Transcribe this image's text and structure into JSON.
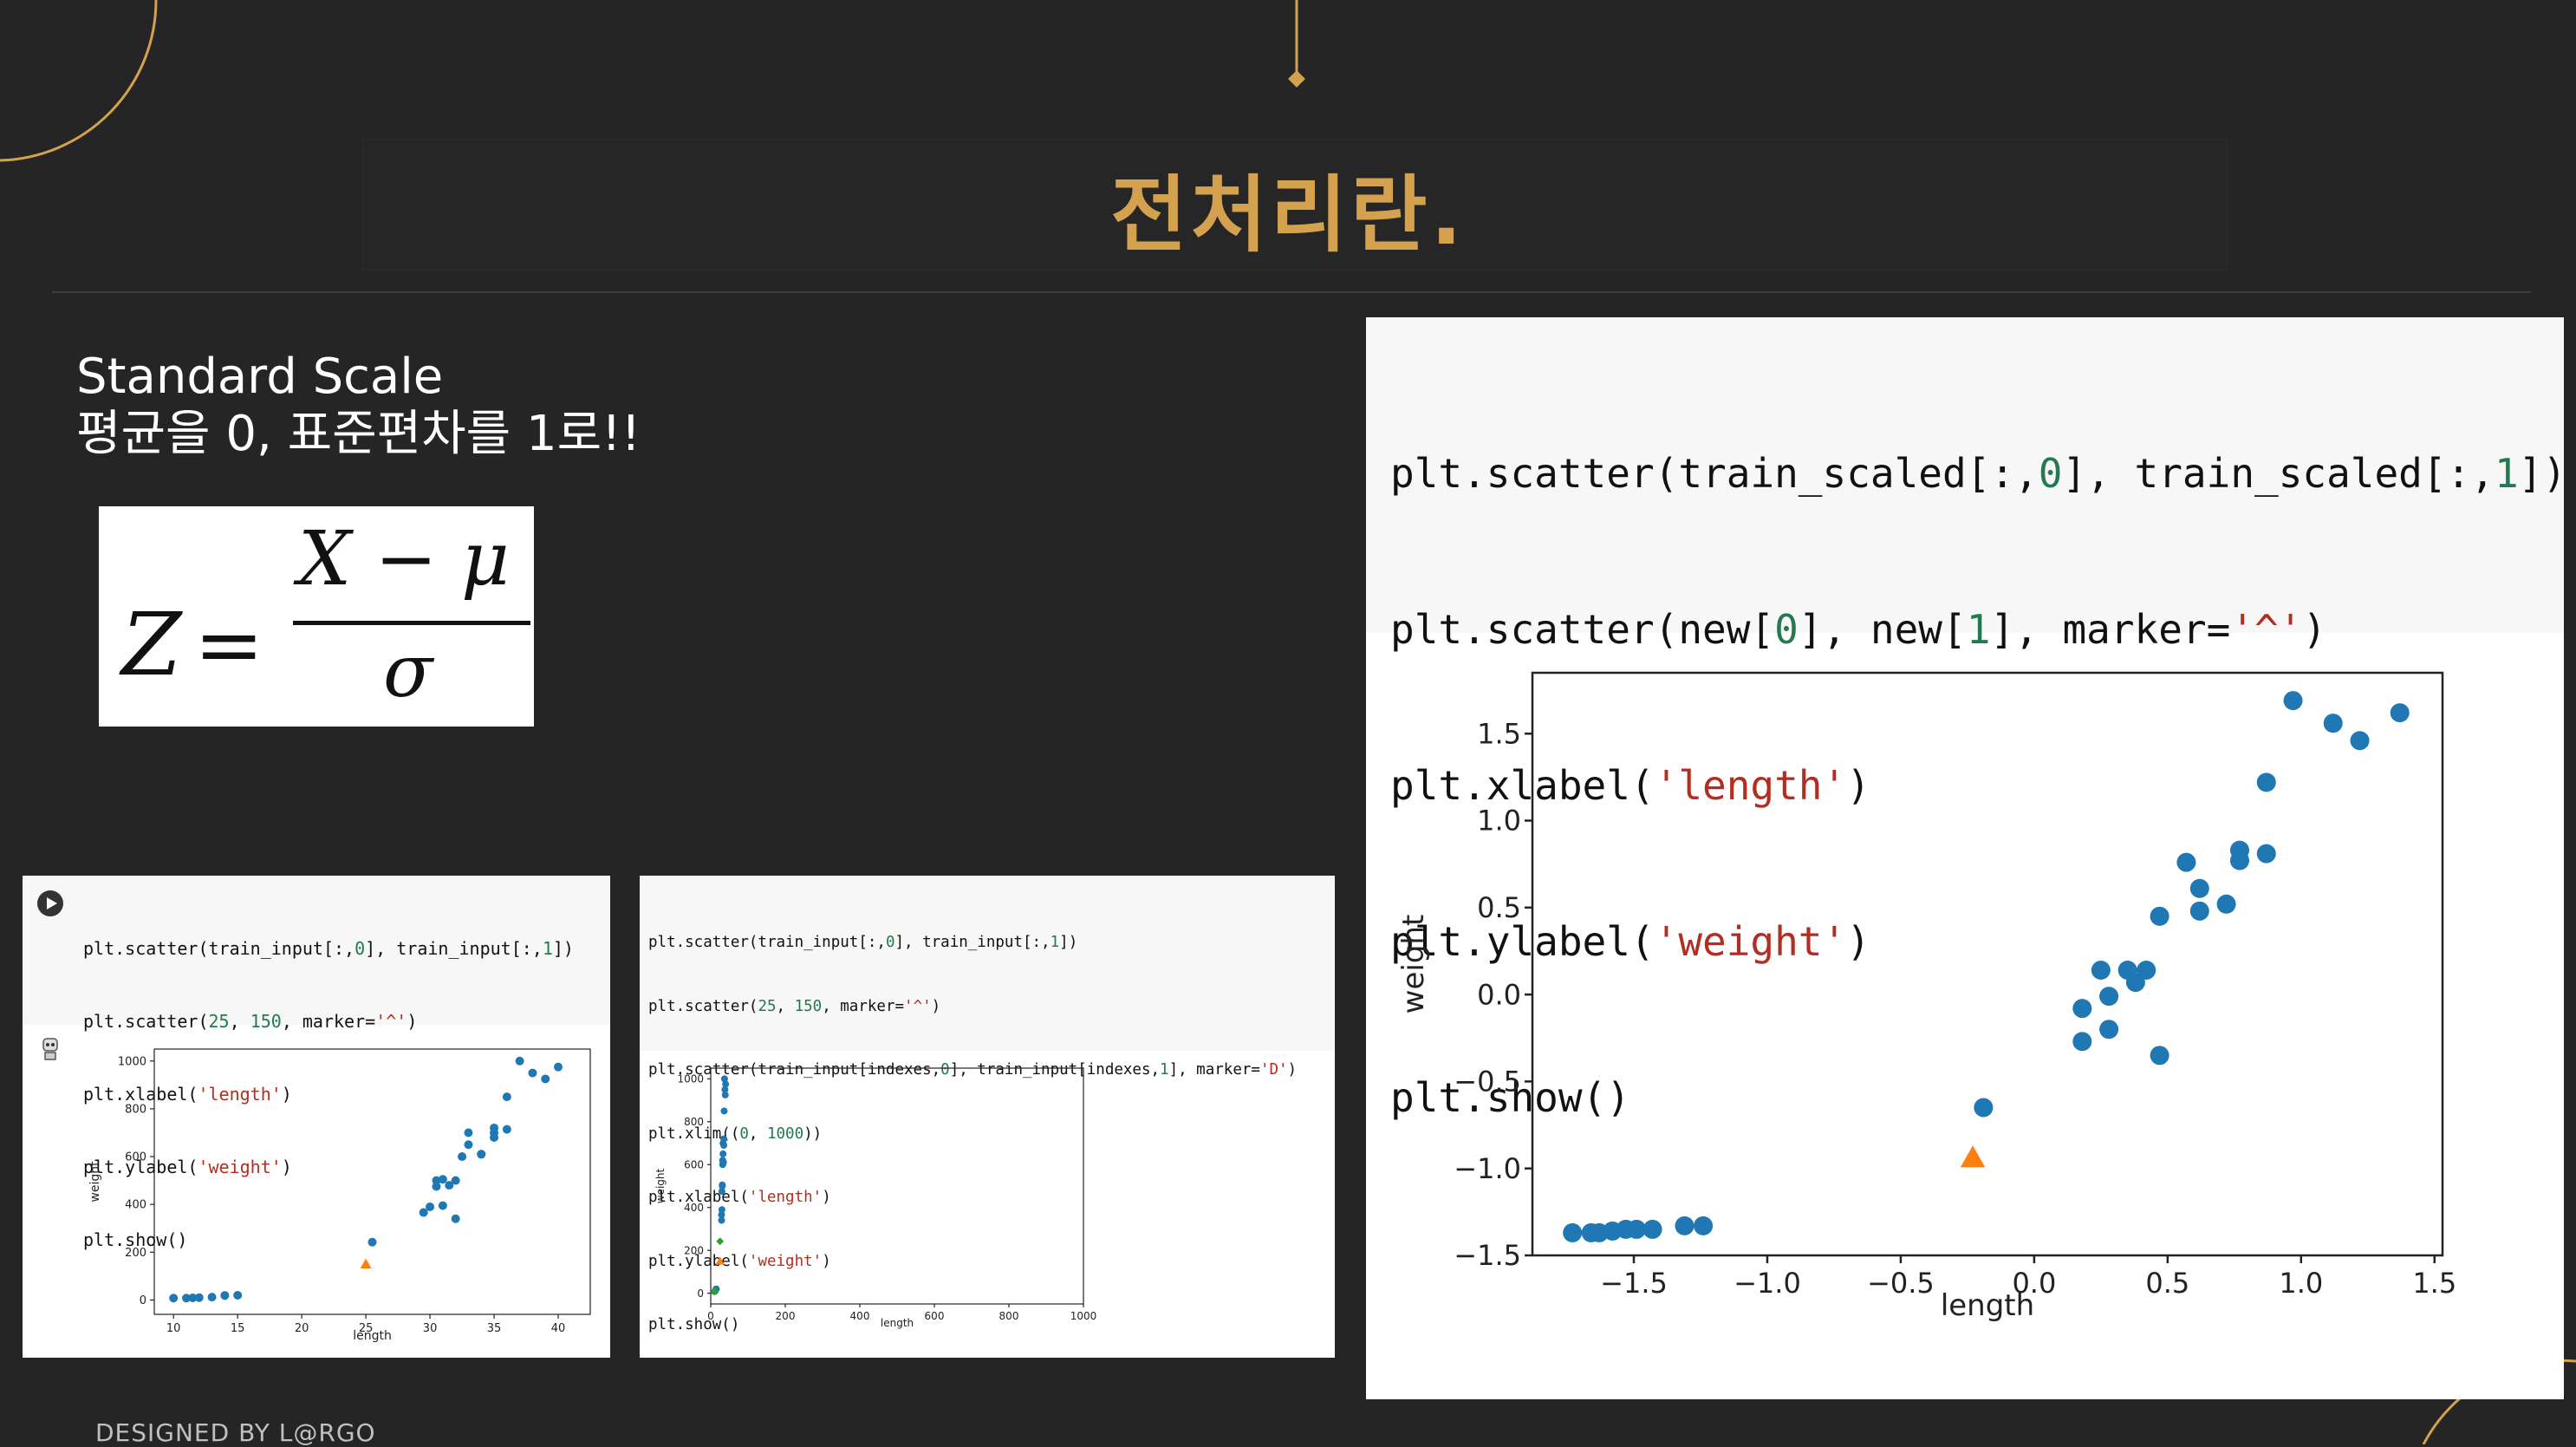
{
  "slide": {
    "title": "전처리란.",
    "subtitle_line1": "Standard Scale",
    "subtitle_line2": "평균을 0, 표준편차를 1로!!",
    "footer": "DESIGNED BY L@RGO",
    "accent_color": "#d4a24f",
    "background_color": "#252525"
  },
  "formula": {
    "lhs": "Z",
    "equals": "=",
    "numerator": "X − μ",
    "denominator": "σ"
  },
  "panel1": {
    "code": [
      "plt.scatter(train_input[:,0], train_input[:,1])",
      "plt.scatter(25, 150, marker='^')",
      "plt.xlabel('length')",
      "plt.ylabel('weight')",
      "plt.show()"
    ],
    "run_icon": "play-circle-icon",
    "avatar_icon": "robot-icon",
    "chart_data": {
      "type": "scatter",
      "xlabel": "length",
      "ylabel": "weight",
      "xlim": [
        8.5,
        42.5
      ],
      "ylim": [
        -60,
        1050
      ],
      "xticks": [
        10,
        15,
        20,
        25,
        30,
        35,
        40
      ],
      "yticks": [
        0,
        200,
        400,
        600,
        800,
        1000
      ],
      "series": [
        {
          "color": "#1f77b4",
          "marker": "circle",
          "points": [
            [
              10,
              8
            ],
            [
              11,
              8
            ],
            [
              11.5,
              9
            ],
            [
              12,
              10
            ],
            [
              13,
              12
            ],
            [
              14,
              19
            ],
            [
              15,
              20
            ],
            [
              25.5,
              242
            ],
            [
              29.5,
              366
            ],
            [
              30,
              390
            ],
            [
              30.5,
              500
            ],
            [
              30.5,
              475
            ],
            [
              31,
              395
            ],
            [
              31,
              505
            ],
            [
              31.5,
              480
            ],
            [
              32,
              500
            ],
            [
              32,
              340
            ],
            [
              32.5,
              600
            ],
            [
              33,
              650
            ],
            [
              33,
              700
            ],
            [
              34,
              610
            ],
            [
              34,
              610
            ],
            [
              35,
              700
            ],
            [
              35,
              720
            ],
            [
              35,
              680
            ],
            [
              36,
              714
            ],
            [
              36,
              850
            ],
            [
              37,
              1000
            ],
            [
              38,
              950
            ],
            [
              39,
              925
            ],
            [
              40,
              975
            ]
          ]
        },
        {
          "color": "#ff7f0e",
          "marker": "triangle",
          "points": [
            [
              25,
              150
            ]
          ]
        }
      ]
    }
  },
  "panel2": {
    "code": [
      "plt.scatter(train_input[:,0], train_input[:,1])",
      "plt.scatter(25, 150, marker='^')",
      "plt.scatter(train_input[indexes,0], train_input[indexes,1], marker='D')",
      "plt.xlim((0, 1000))",
      "plt.xlabel('length')",
      "plt.ylabel('weight')",
      "plt.show()"
    ],
    "chart_data": {
      "type": "scatter",
      "xlabel": "length",
      "ylabel": "weight",
      "xlim": [
        0,
        1000
      ],
      "ylim": [
        -50,
        1050
      ],
      "xticks": [
        0,
        200,
        400,
        600,
        800,
        1000
      ],
      "yticks": [
        0,
        200,
        400,
        600,
        800,
        1000
      ],
      "series": [
        {
          "color": "#1f77b4",
          "marker": "circle",
          "points": [
            [
              10,
              8
            ],
            [
              12,
              10
            ],
            [
              14,
              19
            ],
            [
              15,
              20
            ],
            [
              29,
              340
            ],
            [
              29,
              366
            ],
            [
              30,
              390
            ],
            [
              30,
              475
            ],
            [
              31,
              500
            ],
            [
              31,
              505
            ],
            [
              32,
              600
            ],
            [
              32,
              620
            ],
            [
              33,
              650
            ],
            [
              33,
              700
            ],
            [
              34,
              610
            ],
            [
              35,
              690
            ],
            [
              35,
              720
            ],
            [
              36,
              850
            ],
            [
              37,
              1000
            ],
            [
              38,
              950
            ],
            [
              39,
              925
            ],
            [
              40,
              975
            ]
          ]
        },
        {
          "color": "#ff7f0e",
          "marker": "triangle",
          "points": [
            [
              25,
              150
            ]
          ]
        },
        {
          "color": "#2ca02c",
          "marker": "diamond",
          "points": [
            [
              10,
              8
            ],
            [
              11,
              9
            ],
            [
              12,
              10
            ],
            [
              24.9,
              242
            ]
          ]
        }
      ]
    }
  },
  "panel3": {
    "code": [
      "plt.scatter(train_scaled[:,0], train_scaled[:,1])",
      "plt.scatter(new[0], new[1], marker='^')",
      "plt.xlabel('length')",
      "plt.ylabel('weight')",
      "plt.show()"
    ],
    "chart_data": {
      "type": "scatter",
      "xlabel": "length",
      "ylabel": "weight",
      "xlim": [
        -1.88,
        1.53
      ],
      "ylim": [
        -1.5,
        1.85
      ],
      "xticks": [
        -1.5,
        -1.0,
        -0.5,
        0.0,
        0.5,
        1.0,
        1.5
      ],
      "xtick_labels": [
        "−1.5",
        "−1.0",
        "−0.5",
        "0.0",
        "0.5",
        "1.0",
        "1.5"
      ],
      "yticks": [
        -1.5,
        -1.0,
        -0.5,
        0.0,
        0.5,
        1.0,
        1.5
      ],
      "ytick_labels": [
        "−1.5",
        "−1.0",
        "−0.5",
        "0.0",
        "0.5",
        "1.0",
        "1.5"
      ],
      "series": [
        {
          "color": "#1f77b4",
          "marker": "circle",
          "points": [
            [
              -1.73,
              -1.37
            ],
            [
              -1.66,
              -1.37
            ],
            [
              -1.63,
              -1.37
            ],
            [
              -1.58,
              -1.36
            ],
            [
              -1.53,
              -1.35
            ],
            [
              -1.49,
              -1.35
            ],
            [
              -1.43,
              -1.35
            ],
            [
              -1.31,
              -1.33
            ],
            [
              -1.24,
              -1.33
            ],
            [
              -0.19,
              -0.65
            ],
            [
              0.18,
              -0.27
            ],
            [
              0.18,
              -0.08
            ],
            [
              0.25,
              0.14
            ],
            [
              0.28,
              -0.01
            ],
            [
              0.28,
              -0.2
            ],
            [
              0.35,
              0.14
            ],
            [
              0.38,
              0.07
            ],
            [
              0.42,
              0.14
            ],
            [
              0.47,
              -0.35
            ],
            [
              0.47,
              0.45
            ],
            [
              0.57,
              0.76
            ],
            [
              0.62,
              0.61
            ],
            [
              0.62,
              0.48
            ],
            [
              0.72,
              0.52
            ],
            [
              0.77,
              0.83
            ],
            [
              0.77,
              0.77
            ],
            [
              0.87,
              1.22
            ],
            [
              0.87,
              0.81
            ],
            [
              0.97,
              1.69
            ],
            [
              1.12,
              1.56
            ],
            [
              1.22,
              1.46
            ],
            [
              1.37,
              1.62
            ]
          ]
        },
        {
          "color": "#ff7f0e",
          "marker": "triangle",
          "points": [
            [
              -0.23,
              -0.94
            ]
          ]
        }
      ]
    }
  }
}
